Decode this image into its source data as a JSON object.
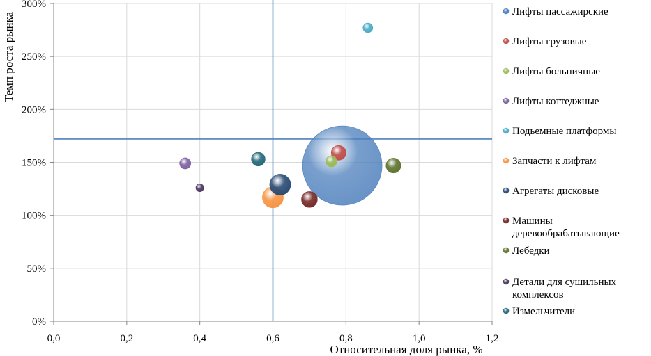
{
  "chart_data": {
    "type": "bubble",
    "title": "",
    "xlabel": "Относительная доля рынка, %",
    "ylabel": "Темп роста рынка",
    "xlim": [
      0,
      1.2
    ],
    "ylim": [
      0,
      3.0
    ],
    "x_ticks": [
      "0,0",
      "0,2",
      "0,4",
      "0,6",
      "0,8",
      "1,0",
      "1,2"
    ],
    "y_ticks": [
      "0%",
      "50%",
      "100%",
      "150%",
      "200%",
      "250%",
      "300%"
    ],
    "grid": true,
    "legend_position": "right",
    "reference_lines": {
      "x": 0.6,
      "y": 1.72
    },
    "series": [
      {
        "name": "Лифты пассажирские",
        "name_lines": [
          "Лифты пассажирские"
        ],
        "x": 0.79,
        "y": 1.47,
        "size": 100,
        "color": "#4f81bd"
      },
      {
        "name": "Лифты грузовые",
        "name_lines": [
          "Лифты грузовые"
        ],
        "x": 0.78,
        "y": 1.59,
        "size": 3.5,
        "color": "#c0504d"
      },
      {
        "name": "Лифты больничные",
        "name_lines": [
          "Лифты больничные"
        ],
        "x": 0.76,
        "y": 1.51,
        "size": 2,
        "color": "#9bbb59"
      },
      {
        "name": "Лифты коттеджные",
        "name_lines": [
          "Лифты коттеджные"
        ],
        "x": 0.36,
        "y": 1.49,
        "size": 2,
        "color": "#8064a2"
      },
      {
        "name": "Подьемные платформы",
        "name_lines": [
          "Подьемные платформы"
        ],
        "x": 0.86,
        "y": 2.77,
        "size": 1.5,
        "color": "#4bacc6"
      },
      {
        "name": "Запчасти к лифтам",
        "name_lines": [
          "Запчасти к лифтам"
        ],
        "x": 0.6,
        "y": 1.17,
        "size": 7,
        "color": "#f79646"
      },
      {
        "name": "Агрегаты дисковые",
        "name_lines": [
          "Агрегаты дисковые"
        ],
        "x": 0.62,
        "y": 1.29,
        "size": 7,
        "color": "#2c4d75"
      },
      {
        "name": "Машины деревообрабатывающие",
        "name_lines": [
          "Машины",
          "деревообрабатывающие"
        ],
        "x": 0.7,
        "y": 1.15,
        "size": 4,
        "color": "#772c2a"
      },
      {
        "name": "Лебедки",
        "name_lines": [
          "Лебедки"
        ],
        "x": 0.93,
        "y": 1.47,
        "size": 3.5,
        "color": "#5f7530"
      },
      {
        "name": "Детали для сушильных комплексов",
        "name_lines": [
          "Детали для сушильных",
          "комплексов"
        ],
        "x": 0.4,
        "y": 1.26,
        "size": 1,
        "color": "#4d3b62"
      },
      {
        "name": "Измельчители",
        "name_lines": [
          "Измельчители"
        ],
        "x": 0.56,
        "y": 1.53,
        "size": 3,
        "color": "#276a7c"
      }
    ]
  }
}
